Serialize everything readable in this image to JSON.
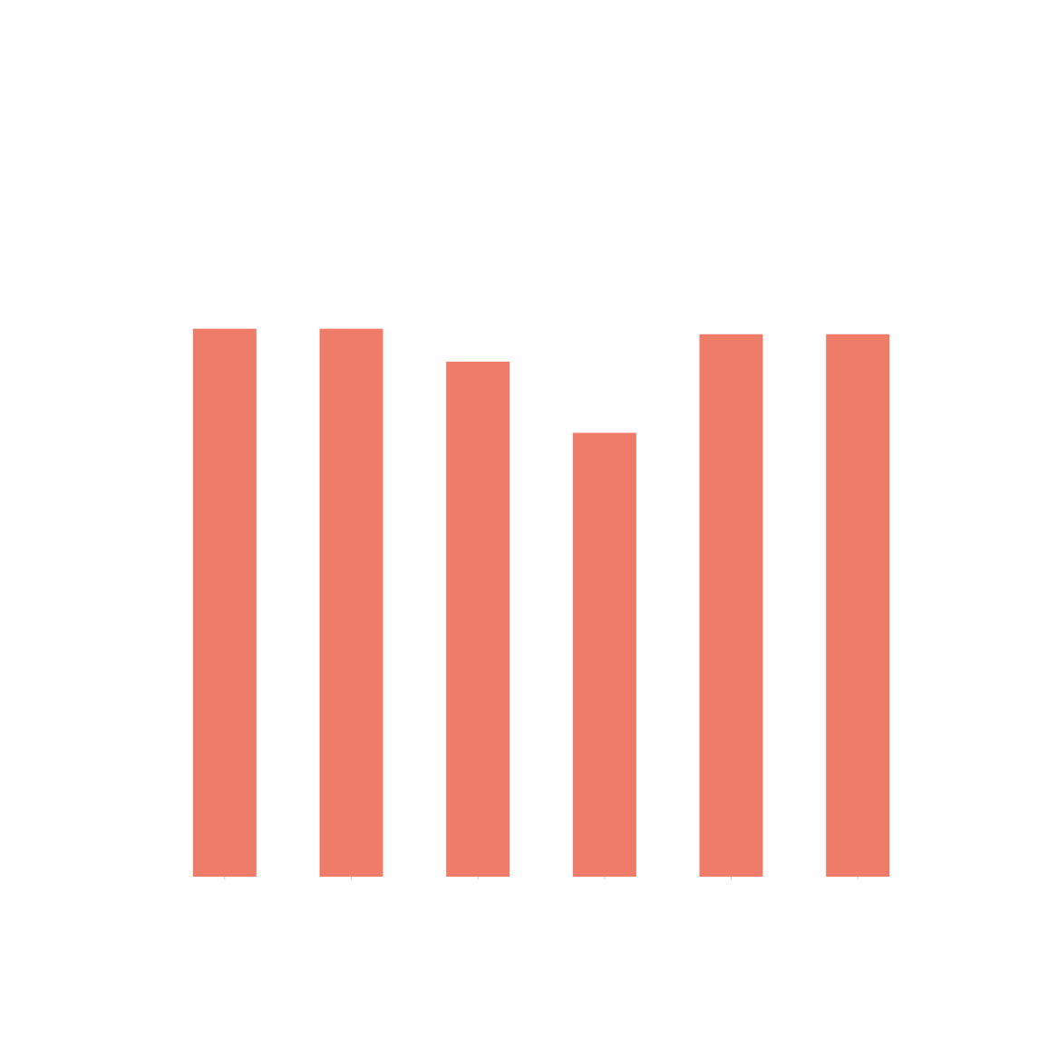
{
  "chart_data": {
    "type": "bar",
    "categories": [
      "",
      "",
      "",
      "",
      "",
      ""
    ],
    "values": [
      100,
      100,
      94,
      81,
      99,
      99
    ],
    "ylim": [
      0,
      160
    ],
    "title": "",
    "xlabel": "",
    "ylabel": "",
    "grid": false,
    "legend": "none",
    "bar_color": "#ef7c69",
    "background": "#ffffff",
    "tick_color": "#cccccc"
  }
}
